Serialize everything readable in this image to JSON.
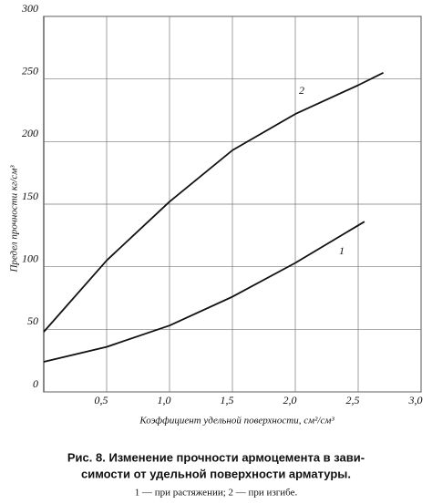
{
  "chart_data": {
    "type": "line",
    "xlabel": "Коэффициент удельной поверхности, см²/см³",
    "ylabel": "Предел прочности кг/см³",
    "caption": [
      "Рис. 8. Изменение прочности армоцемента в зави-",
      "симости от удельной поверхности арматуры."
    ],
    "subcaption": "1 — при растяжении; 2 — при изгибе.",
    "series": [
      {
        "name": "1",
        "color": "#111111",
        "x": [
          0,
          0.5,
          1.0,
          1.5,
          2.0,
          2.5,
          2.55
        ],
        "values": [
          24,
          36,
          53,
          76,
          103,
          133,
          136
        ]
      },
      {
        "name": "2",
        "color": "#111111",
        "x": [
          0,
          0.5,
          1.0,
          1.5,
          2.0,
          2.5,
          2.7
        ],
        "values": [
          48,
          105,
          152,
          193,
          222,
          245,
          255
        ]
      }
    ],
    "xlim": [
      0,
      3.0
    ],
    "xticks": [
      {
        "value": 0.5,
        "label": "0,5"
      },
      {
        "value": 1.0,
        "label": "1,0"
      },
      {
        "value": 1.5,
        "label": "1,5"
      },
      {
        "value": 2.0,
        "label": "2,0"
      },
      {
        "value": 2.5,
        "label": "2,5"
      },
      {
        "value": 3.0,
        "label": "3,0"
      }
    ],
    "ylim": [
      0,
      300
    ],
    "yticks": [
      0,
      50,
      100,
      150,
      200,
      250,
      300
    ],
    "grid": true
  }
}
